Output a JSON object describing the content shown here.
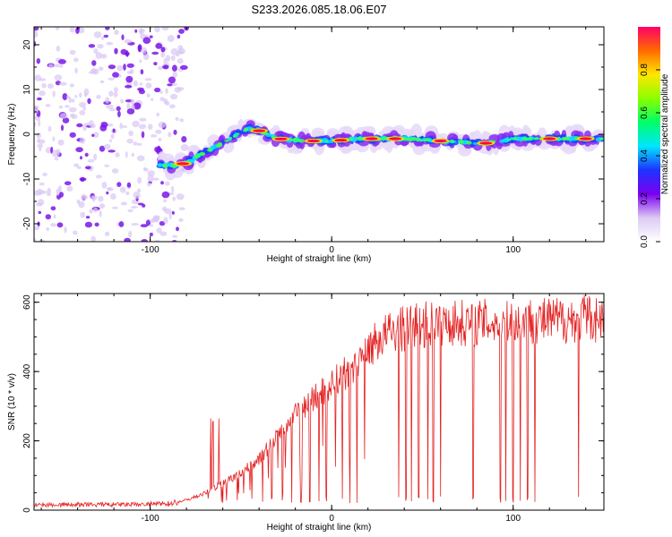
{
  "page_title": "S233.2026.085.18.06.E07",
  "chart_data": [
    {
      "type": "heatmap",
      "title": "S233.2026.085.18.06.E07",
      "xlabel": "Height of straight line (km)",
      "ylabel": "Frequency (Hz)",
      "xlim": [
        -164,
        150
      ],
      "ylim": [
        -24,
        24
      ],
      "xticks": [
        -100,
        0,
        100
      ],
      "yticks": [
        -20,
        -10,
        0,
        10,
        20
      ],
      "track": [
        {
          "x": -95,
          "y": -7
        },
        {
          "x": -85,
          "y": -7
        },
        {
          "x": -78,
          "y": -6
        },
        {
          "x": -70,
          "y": -4
        },
        {
          "x": -60,
          "y": -2
        },
        {
          "x": -52,
          "y": 0
        },
        {
          "x": -45,
          "y": 1.5
        },
        {
          "x": -38,
          "y": 0.5
        },
        {
          "x": -30,
          "y": -1
        },
        {
          "x": -15,
          "y": -1.5
        },
        {
          "x": 0,
          "y": -1.5
        },
        {
          "x": 15,
          "y": -1
        },
        {
          "x": 40,
          "y": -1
        },
        {
          "x": 60,
          "y": -1.5
        },
        {
          "x": 85,
          "y": -2
        },
        {
          "x": 100,
          "y": -1
        },
        {
          "x": 150,
          "y": -1
        }
      ],
      "colorbar": {
        "label": "Normalized spectral amplitude",
        "range": [
          0.0,
          1.0
        ],
        "ticks": [
          0.0,
          0.2,
          0.4,
          0.6,
          0.8
        ],
        "tick_labels": [
          "0.0",
          "0.2",
          "0.4",
          "0.6",
          "0.8"
        ],
        "colors": [
          "#ffffff",
          "#dccaf4",
          "#7a00f0",
          "#1e32ff",
          "#00e6ff",
          "#00ff66",
          "#8cff00",
          "#ffe600",
          "#ff6a00",
          "#ff0066"
        ]
      }
    },
    {
      "type": "line",
      "xlabel": "Height of straight line (km)",
      "ylabel": "SNR (10 * v/v)",
      "xlim": [
        -164,
        150
      ],
      "ylim": [
        0,
        625
      ],
      "xticks": [
        -100,
        0,
        100
      ],
      "yticks": [
        0,
        200,
        400,
        600
      ],
      "color": "#e52222",
      "envelope": [
        {
          "x": -164,
          "y": 15
        },
        {
          "x": -110,
          "y": 15
        },
        {
          "x": -90,
          "y": 18
        },
        {
          "x": -80,
          "y": 30
        },
        {
          "x": -70,
          "y": 50
        },
        {
          "x": -60,
          "y": 80
        },
        {
          "x": -50,
          "y": 110
        },
        {
          "x": -40,
          "y": 150
        },
        {
          "x": -30,
          "y": 220
        },
        {
          "x": -20,
          "y": 280
        },
        {
          "x": -10,
          "y": 330
        },
        {
          "x": 0,
          "y": 370
        },
        {
          "x": 10,
          "y": 420
        },
        {
          "x": 20,
          "y": 480
        },
        {
          "x": 30,
          "y": 520
        },
        {
          "x": 45,
          "y": 545
        },
        {
          "x": 60,
          "y": 555
        },
        {
          "x": 80,
          "y": 555
        },
        {
          "x": 100,
          "y": 560
        },
        {
          "x": 120,
          "y": 560
        },
        {
          "x": 140,
          "y": 570
        },
        {
          "x": 150,
          "y": 565
        }
      ],
      "dropouts": [
        -68,
        -60,
        -52,
        -45,
        -38,
        -33,
        -27,
        -22,
        -17,
        -12,
        -7,
        -3,
        2,
        6,
        10,
        14,
        37,
        41,
        44,
        48,
        53,
        56,
        60,
        78,
        93,
        96,
        100,
        104,
        108,
        112,
        136
      ]
    }
  ]
}
